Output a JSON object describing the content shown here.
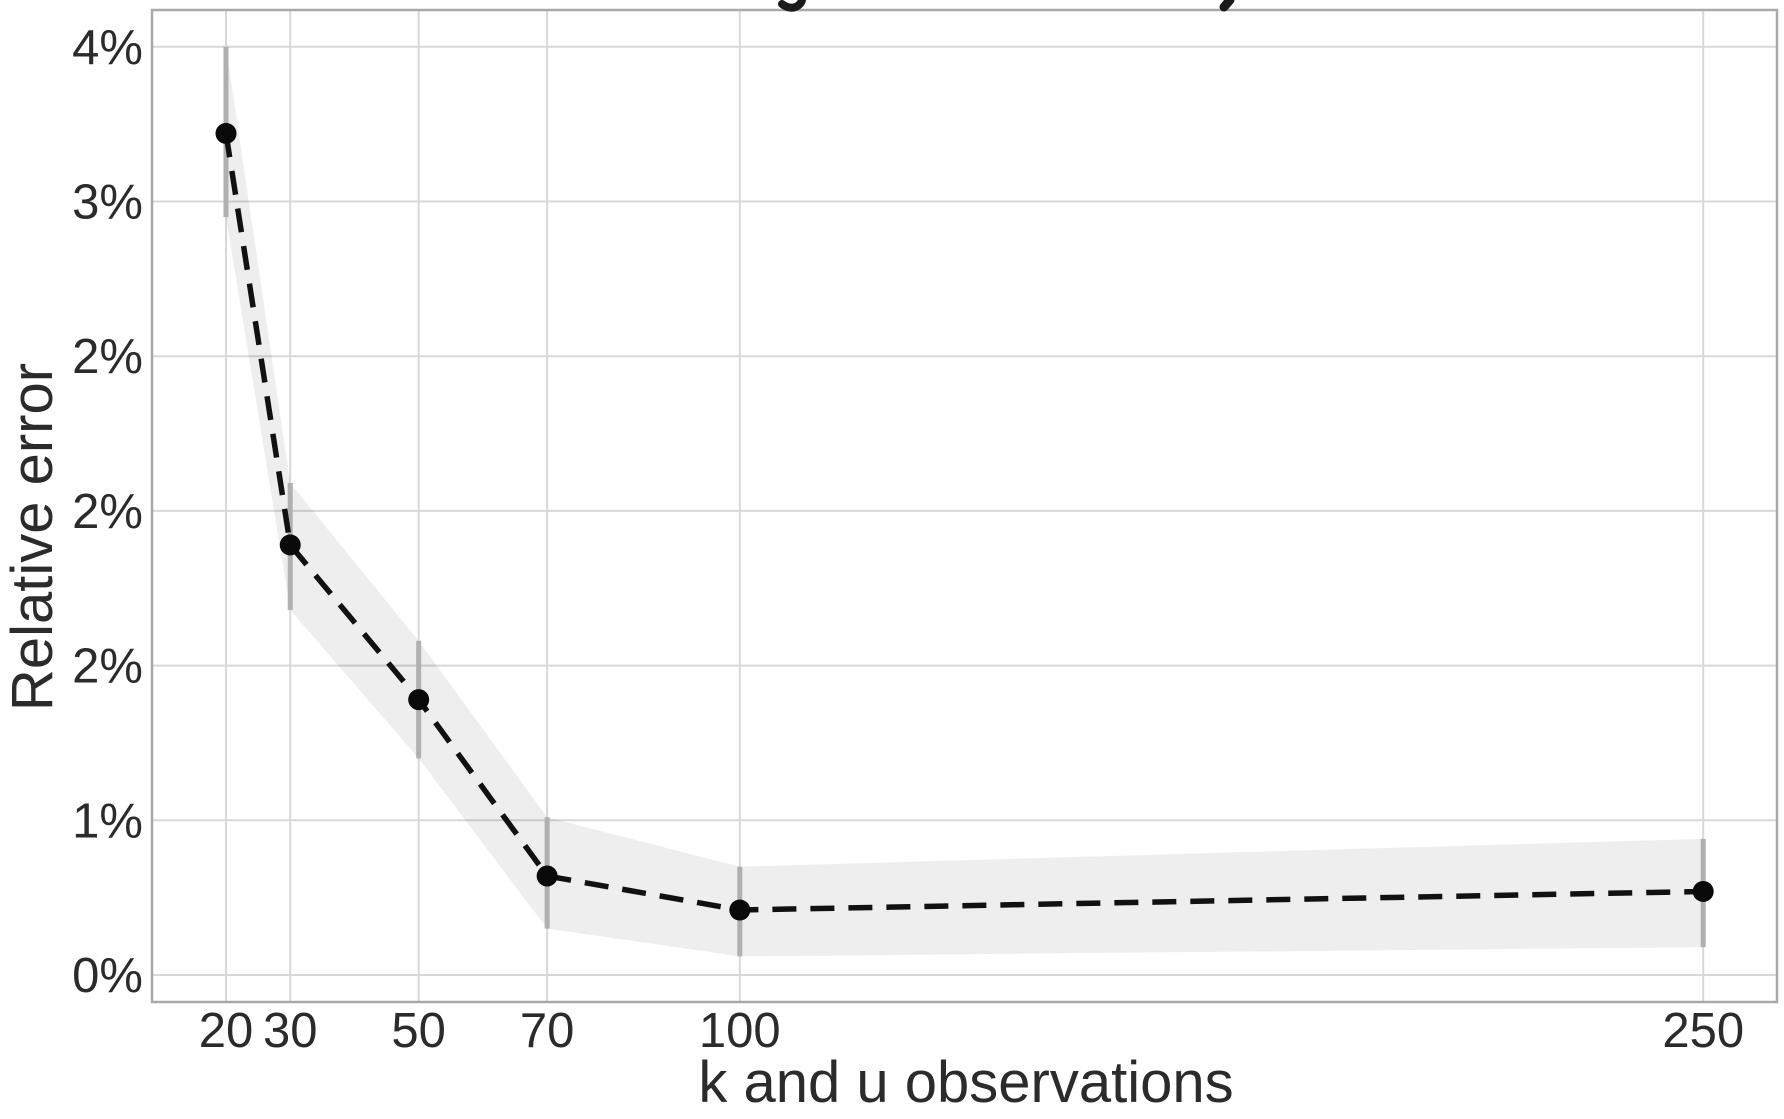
{
  "figure": {
    "clipped_title": {
      "fragments": [
        {
          "type": "y-descender",
          "x": 790
        },
        {
          "type": "comma",
          "x": 1227
        }
      ]
    }
  },
  "chart_data": {
    "type": "line",
    "xlabel": "k and u observations",
    "ylabel": "Relative error",
    "x": [
      20,
      30,
      50,
      70,
      100,
      250
    ],
    "series": [
      {
        "name": "relative error",
        "values_pct": [
          3.22,
          1.89,
          1.39,
          0.82,
          0.71,
          0.77
        ],
        "ci_low_pct": [
          2.95,
          1.68,
          1.2,
          0.65,
          0.56,
          0.59
        ],
        "ci_high_pct": [
          3.5,
          2.09,
          1.58,
          1.01,
          0.85,
          0.94
        ]
      }
    ],
    "x_ticks": {
      "values": [
        20,
        30,
        50,
        70,
        100,
        250
      ],
      "labels": [
        "20",
        "30",
        "50",
        "70",
        "100",
        "250"
      ]
    },
    "y_ticks": {
      "values_pct": [
        0.5,
        1.0,
        1.5,
        2.0,
        2.5,
        3.0,
        3.5
      ],
      "labels": [
        "0%",
        "1%",
        "2%",
        "2%",
        "2%",
        "3%",
        "4%"
      ]
    },
    "x_axis_range": [
      8.5,
      261.5
    ],
    "y_axis_range_pct": [
      0.41,
      3.62
    ],
    "grid": true,
    "legend": false,
    "style": {
      "background": "#ffffff",
      "grid_color": "#d8d8d8",
      "panel_border_color": "#a9a9a9",
      "ribbon_color": "rgba(0,0,0,0.065)",
      "errorbar_color": "#b0b0b0",
      "line_color": "#111111",
      "marker_color": "#0a0a0a",
      "tick_label_color": "#2b2b2b",
      "axis_title_color": "#2b2b2b"
    }
  }
}
